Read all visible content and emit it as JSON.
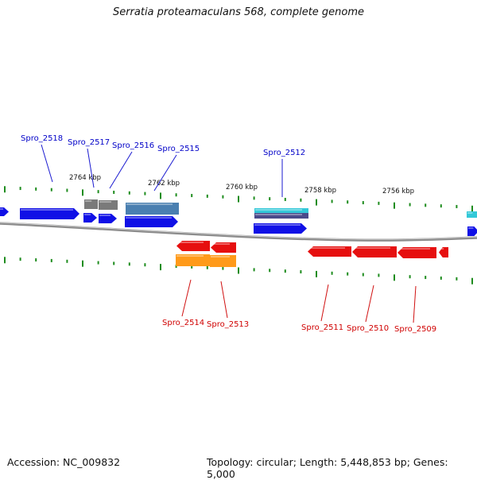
{
  "title": "Serratia proteamaculans 568, complete genome",
  "accession": "Accession: NC_009832",
  "topology": "Topology: circular; Length: 5,448,853 bp; Genes: 5,000",
  "colors": {
    "forward_gene": "#1010e6",
    "reverse_gene": "#e60f0f",
    "rna_gray": "#7a7a7a",
    "steel_blue": "#4a7fb0",
    "orange": "#ff9a1a",
    "cyan": "#33c8d8",
    "tick": "#1e8c1e",
    "backbone": "#909090",
    "forward_label": "#0000c8",
    "reverse_label": "#d00000"
  },
  "scale_labels": [
    "2764 kbp",
    "2762 kbp",
    "2760 kbp",
    "2758 kbp",
    "2756 kbp"
  ],
  "forward_labels": [
    "Spro_2518",
    "Spro_2517",
    "Spro_2516",
    "Spro_2515",
    "Spro_2512"
  ],
  "reverse_labels": [
    "Spro_2514",
    "Spro_2513",
    "Spro_2511",
    "Spro_2510",
    "Spro_2509"
  ]
}
